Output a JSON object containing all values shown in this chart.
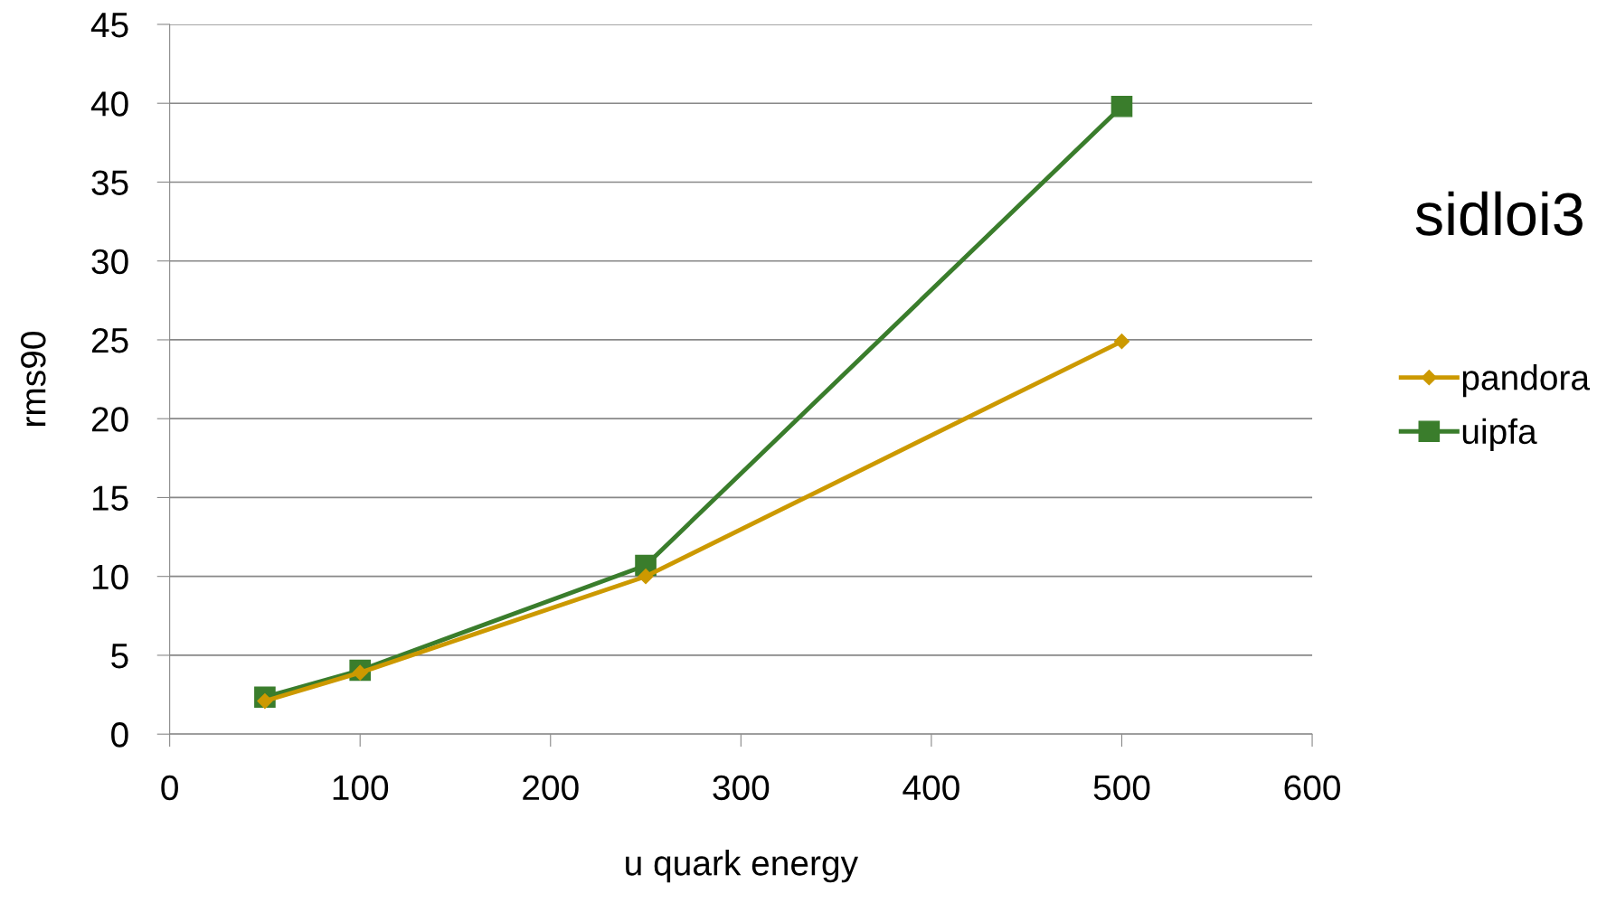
{
  "chart_data": {
    "type": "line",
    "title": "sidloi3",
    "xlabel": "u quark energy",
    "ylabel": "rms90",
    "x": [
      50,
      100,
      250,
      500
    ],
    "series": [
      {
        "name": "pandora",
        "color": "#cc9900",
        "values": [
          2.1,
          3.9,
          10.0,
          24.9
        ],
        "marker": "diamond"
      },
      {
        "name": "uipfa",
        "color": "#3a7d2c",
        "values": [
          2.35,
          4.05,
          10.7,
          39.8
        ],
        "marker": "square"
      }
    ],
    "xlim": [
      0,
      600
    ],
    "xticks": [
      0,
      100,
      200,
      300,
      400,
      500,
      600
    ],
    "ylim": [
      0,
      45
    ],
    "yticks": [
      0,
      5,
      10,
      15,
      20,
      25,
      30,
      35,
      40,
      45
    ],
    "grid": "y",
    "legend": "right",
    "line_style": "solid"
  }
}
